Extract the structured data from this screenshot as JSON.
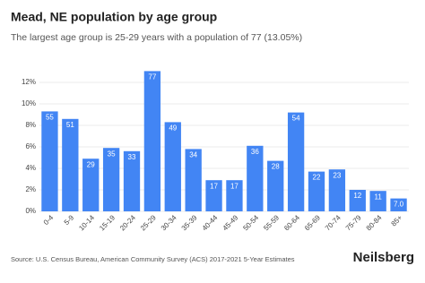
{
  "chart_data": {
    "type": "bar",
    "title": "Mead, NE population by age group",
    "subtitle": "The largest age group is 25-29 years with a population of 77 (13.05%)",
    "source": "Source: U.S. Census Bureau, American Community Survey (ACS) 2017-2021 5-Year Estimates",
    "brand": "Neilsberg",
    "categories": [
      "0-4",
      "5-9",
      "10-14",
      "15-19",
      "20-24",
      "25-29",
      "30-34",
      "35-39",
      "40-44",
      "45-49",
      "50-54",
      "55-59",
      "60-64",
      "65-69",
      "70-74",
      "75-79",
      "80-84",
      "85+"
    ],
    "values": [
      9.3,
      8.6,
      4.9,
      5.9,
      5.6,
      13.05,
      8.3,
      5.8,
      2.9,
      2.9,
      6.1,
      4.7,
      9.2,
      3.7,
      3.9,
      2.0,
      1.9,
      1.2
    ],
    "count_labels": [
      "55",
      "51",
      "29",
      "35",
      "33",
      "77",
      "49",
      "34",
      "17",
      "17",
      "36",
      "28",
      "54",
      "22",
      "23",
      "12",
      "11",
      "7.0"
    ],
    "color": "#4285f4",
    "ylim": [
      0,
      13.5
    ],
    "yticks": [
      {
        "value": 0,
        "label": "0%"
      },
      {
        "value": 2,
        "label": "2%"
      },
      {
        "value": 4,
        "label": "4%"
      },
      {
        "value": 6,
        "label": "6%"
      },
      {
        "value": 8,
        "label": "8%"
      },
      {
        "value": 10,
        "label": "10%"
      },
      {
        "value": 12,
        "label": "12%"
      }
    ],
    "grid": true
  }
}
